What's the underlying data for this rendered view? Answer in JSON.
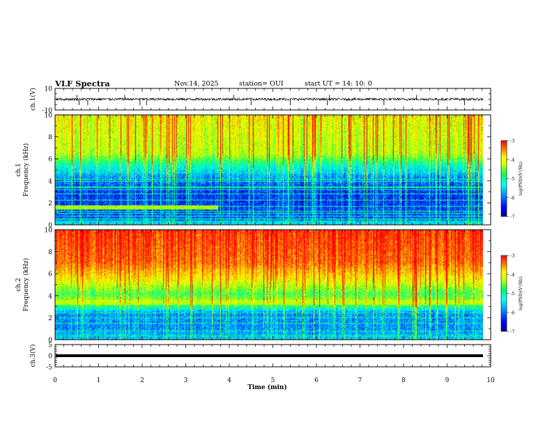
{
  "header": {
    "title": "VLF Spectra",
    "date": "Nov.14, 2025",
    "station": "station= OUI",
    "start": "start  UT =   14: 10: 0"
  },
  "chart_data": [
    {
      "id": "ch1-waveform",
      "type": "line",
      "ylabel": "ch.1(V)",
      "ylim": [
        -10,
        10
      ],
      "y_ticks": [
        "10",
        "-10"
      ],
      "xlim": [
        0,
        10
      ],
      "baseline": 0,
      "noise_amplitude": 1.2,
      "spikes_min": [
        0.5,
        0.55,
        0.75,
        1.6,
        1.95,
        2.1,
        4.1,
        4.5,
        5.4,
        6.3,
        6.25,
        7.55,
        8.3,
        8.8,
        9.4
      ]
    },
    {
      "id": "ch1-spectrogram",
      "type": "heatmap",
      "ylabel_line1": "ch.1",
      "ylabel_line2": "Frequency (kHz)",
      "ylim": [
        0,
        10
      ],
      "y_ticks": [
        "0",
        "2",
        "4",
        "6",
        "8",
        "10"
      ],
      "xlim": [
        0,
        9.85
      ],
      "intensity_profile_khz": [
        [
          0,
          0.35
        ],
        [
          0.6,
          0.15
        ],
        [
          2.0,
          0.1
        ],
        [
          3.3,
          0.1
        ],
        [
          4.5,
          0.2
        ],
        [
          5.5,
          0.35
        ],
        [
          6.5,
          0.55
        ],
        [
          10,
          0.6
        ]
      ],
      "lines_khz": [
        0.3,
        0.55,
        0.8,
        1.1,
        1.25,
        1.7,
        2.3,
        2.85,
        3.2,
        3.4,
        3.5,
        4.0,
        4.2,
        4.8,
        5.7,
        6.0
      ],
      "band_khz": [
        1.45,
        1.75
      ],
      "band_end_min": 3.75,
      "colorbar": {
        "ticks": [
          "-3",
          "-4",
          "-5",
          "-6",
          "-7"
        ],
        "label": "log(PSD)(V²/Hz)"
      }
    },
    {
      "id": "ch2-spectrogram",
      "type": "heatmap",
      "ylabel_line1": "ch.2",
      "ylabel_line2": "Frequency (kHz)",
      "ylim": [
        0,
        10
      ],
      "y_ticks": [
        "0",
        "2",
        "4",
        "6",
        "8",
        "10"
      ],
      "xlim": [
        0,
        9.85
      ],
      "intensity_profile_khz": [
        [
          0,
          0.28
        ],
        [
          1.0,
          0.2
        ],
        [
          2.5,
          0.2
        ],
        [
          3.3,
          0.5
        ],
        [
          3.6,
          0.55
        ],
        [
          4.2,
          0.45
        ],
        [
          5.5,
          0.65
        ],
        [
          7.0,
          0.8
        ],
        [
          10,
          0.85
        ]
      ],
      "lines_khz": [
        0.4,
        0.8,
        1.55,
        2.05,
        2.5,
        3.05,
        3.35,
        3.6,
        3.9,
        4.1,
        4.3
      ],
      "band_khz": [
        3.2,
        3.6
      ],
      "band_end_min": 9.85,
      "colorbar": {
        "ticks": [
          "-3",
          "-4",
          "-5",
          "-6",
          "-7"
        ],
        "label": "log(PSD)(V²/Hz)"
      }
    },
    {
      "id": "ch3-waveform",
      "type": "line",
      "ylabel": "ch.3(V)",
      "ylim": [
        -5,
        5
      ],
      "y_ticks": [
        "5",
        "0",
        "-5"
      ],
      "xlim": [
        0,
        10
      ],
      "baseline": 0
    }
  ],
  "xaxis": {
    "label": "Time (min)",
    "ticks": [
      "0",
      "1",
      "2",
      "3",
      "4",
      "5",
      "6",
      "7",
      "8",
      "9",
      "10"
    ]
  },
  "colors": {
    "colormap": [
      "#000080",
      "#0000ff",
      "#00a0ff",
      "#00ffff",
      "#00ff60",
      "#c8ff00",
      "#ffff00",
      "#ff8000",
      "#ff0000"
    ],
    "trace": "#000000"
  }
}
